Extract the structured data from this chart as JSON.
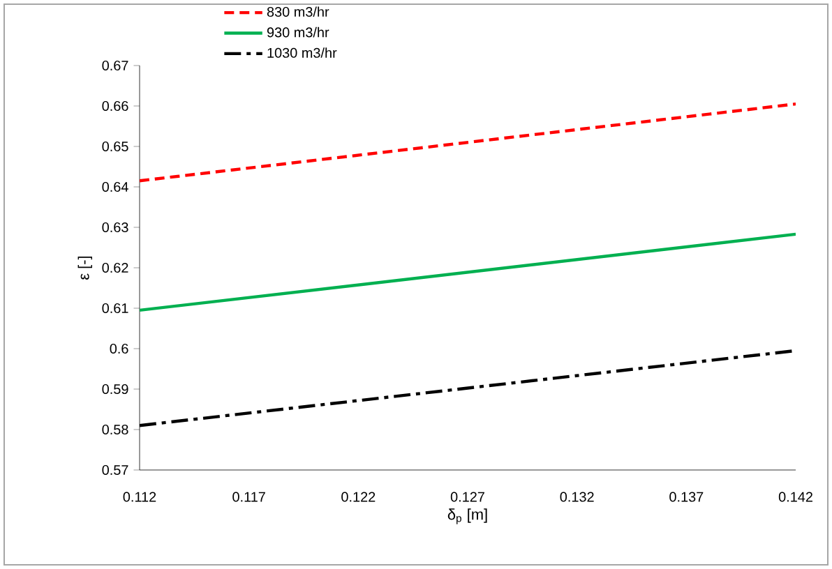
{
  "chart_data": {
    "type": "line",
    "xlabel": "δ$_{p}$ [m]",
    "ylabel": "ε [-]",
    "x": [
      0.112,
      0.142
    ],
    "series": [
      {
        "name": "830 m3/hr",
        "color": "#ff0000",
        "line_style": "dashed",
        "values": [
          0.6415,
          0.6605
        ]
      },
      {
        "name": "930 m3/hr",
        "color": "#00b050",
        "line_style": "solid",
        "values": [
          0.6095,
          0.6283
        ]
      },
      {
        "name": "1030 m3/hr",
        "color": "#000000",
        "line_style": "dashdot",
        "values": [
          0.581,
          0.5995
        ]
      }
    ],
    "xlim": [
      0.112,
      0.142
    ],
    "xticks": [
      0.112,
      0.117,
      0.122,
      0.127,
      0.132,
      0.137,
      0.142
    ],
    "ylim": [
      0.57,
      0.67
    ],
    "yticks": [
      0.57,
      0.58,
      0.59,
      0.6,
      0.61,
      0.62,
      0.63,
      0.64,
      0.65,
      0.66,
      0.67
    ],
    "grid": false,
    "legend": "top left",
    "marker": "none"
  }
}
